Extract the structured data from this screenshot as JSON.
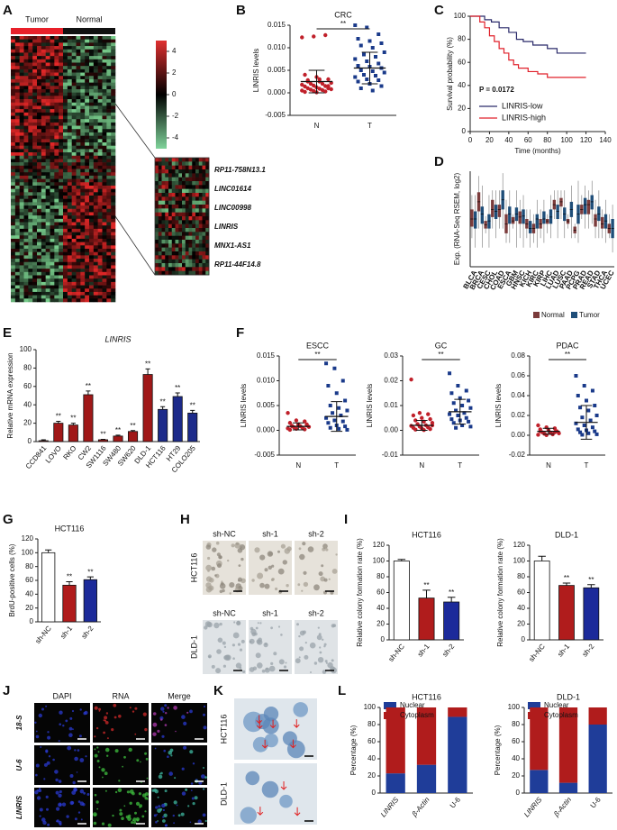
{
  "panel_letters": [
    "A",
    "B",
    "C",
    "D",
    "E",
    "F",
    "G",
    "H",
    "I",
    "J",
    "K",
    "L"
  ],
  "heatmap": {
    "group_labels": [
      "Tumor",
      "Normal"
    ],
    "group_colors": [
      "#e8202a",
      "#111111"
    ],
    "colorbar_ticks": [
      4,
      2,
      0,
      -2,
      -4
    ],
    "genes": [
      "RP11-758N13.1",
      "LINC01614",
      "LINC00998",
      "LINRIS",
      "MNX1-AS1",
      "RP11-44F14.8"
    ],
    "highlight_index": 3,
    "highlight_color": "#e02020"
  },
  "images": {
    "H": {
      "columns": [
        "sh-NC",
        "sh-1",
        "sh-2"
      ],
      "rows": [
        "HCT116",
        "DLD-1"
      ]
    },
    "J": {
      "columns": [
        "DAPI",
        "RNA",
        "Merge"
      ],
      "rows": [
        "18-S",
        "U-6",
        "LINRIS"
      ]
    },
    "K": {
      "rows": [
        "HCT116",
        "DLD-1"
      ]
    }
  },
  "chart_data": [
    {
      "type": "dot",
      "title": "CRC",
      "ylabel": "LINRIS levels",
      "categories": [
        "N",
        "T"
      ],
      "ylim": [
        -0.005,
        0.015
      ],
      "yticks": [
        -0.005,
        {
          "value": 0,
          "label": "0.000"
        },
        0.005,
        {
          "value": 0.01,
          "label": "0.010"
        },
        0.015
      ],
      "groups": [
        {
          "color": "#c0202a",
          "marker": "circle",
          "values": [
            0.0123,
            0.0125,
            0.0128,
            0.004,
            0.0035,
            0.003,
            0.0028,
            0.0025,
            0.0022,
            0.002,
            0.002,
            0.0018,
            0.0016,
            0.0015,
            0.0014,
            0.0012,
            0.001,
            0.001,
            0.0009,
            0.0008,
            0.0007,
            0.0006,
            0.0005,
            0.0004,
            0.0003,
            0.0002,
            0.0001,
            0.0015,
            0.0025,
            0.003
          ]
        },
        {
          "color": "#1a3a8a",
          "marker": "square",
          "values": [
            0.015,
            0.0145,
            0.013,
            0.012,
            0.0115,
            0.011,
            0.0105,
            0.01,
            0.009,
            0.0085,
            0.008,
            0.0075,
            0.007,
            0.0065,
            0.006,
            0.0058,
            0.0055,
            0.005,
            0.0048,
            0.0045,
            0.004,
            0.0038,
            0.0035,
            0.003,
            0.0028,
            0.0025,
            0.002,
            0.0015,
            0.001,
            0.0005
          ]
        }
      ],
      "means": [
        0.0025,
        0.0055
      ],
      "sd": [
        0.0025,
        0.0035
      ],
      "significance": "**"
    },
    {
      "type": "line",
      "ylabel": "Survival probability (%)",
      "xlabel": "Time (months)",
      "xlim": [
        0,
        140
      ],
      "xticks": [
        0,
        20,
        40,
        60,
        80,
        100,
        120,
        140
      ],
      "ylim": [
        0,
        100
      ],
      "yticks": [
        0,
        20,
        40,
        60,
        80,
        100
      ],
      "annotation": "P = 0.0172",
      "series": [
        {
          "name": "LINRIS-low",
          "color": "#2a2a6a",
          "x": [
            0,
            10,
            15,
            22,
            30,
            40,
            48,
            55,
            65,
            80,
            90,
            120
          ],
          "values": [
            100,
            100,
            97,
            95,
            90,
            86,
            80,
            78,
            75,
            72,
            68,
            68
          ]
        },
        {
          "name": "LINRIS-high",
          "color": "#e0202a",
          "x": [
            0,
            5,
            10,
            15,
            20,
            25,
            30,
            35,
            40,
            45,
            50,
            60,
            70,
            80,
            120
          ],
          "values": [
            100,
            100,
            95,
            90,
            83,
            78,
            72,
            68,
            62,
            58,
            55,
            52,
            50,
            47,
            47
          ]
        }
      ]
    },
    {
      "type": "box",
      "ylabel": "Exp. (RNA-Seq RSEM, log2)",
      "ylim": [
        -1,
        9
      ],
      "categories": [
        "BLCA",
        "BRCA",
        "CESC",
        "CHOL",
        "COAD",
        "ESCA",
        "GBM",
        "HNSC",
        "KICH",
        "KIRC",
        "KIRP",
        "LIHC",
        "LUAD",
        "LUSC",
        "PAAD",
        "PCPG",
        "PRAD",
        "READ",
        "STAD",
        "THCA",
        "UCEC"
      ],
      "series": [
        {
          "name": "Normal",
          "color": "#7b3b3b",
          "boxes": [
            [
              2,
              3.2,
              4,
              5,
              6.5
            ],
            [
              3,
              4.8,
              5.8,
              6.8,
              8.5
            ],
            [
              2.5,
              3,
              3.4,
              3.8,
              4.3
            ],
            [
              3,
              4.2,
              5,
              6,
              7
            ],
            [
              3,
              4.2,
              5,
              5.5,
              7
            ],
            [
              1.5,
              2.5,
              3.5,
              4.5,
              6
            ],
            [
              3,
              3.5,
              3.8,
              4.2,
              4.5
            ],
            [
              2,
              3.5,
              4.2,
              4.8,
              6
            ],
            [
              2,
              3,
              3.5,
              4,
              5
            ],
            [
              1.5,
              2.5,
              3,
              3.5,
              4.5
            ],
            [
              2,
              3,
              3.5,
              4,
              5
            ],
            [
              2.5,
              3.5,
              3.8,
              4,
              4.5
            ],
            [
              4,
              5,
              5.5,
              6,
              7
            ],
            [
              4,
              5.3,
              5.8,
              6.2,
              7
            ],
            [
              3,
              3.5,
              3.8,
              4,
              4.5
            ],
            [
              2,
              2.5,
              2.8,
              3.2,
              3.5
            ],
            [
              4,
              4.5,
              5,
              5.5,
              6.5
            ],
            [
              3,
              4.5,
              5.5,
              6,
              7
            ],
            [
              2,
              3.2,
              4,
              4.5,
              6
            ],
            [
              2,
              3,
              3.5,
              4.2,
              5
            ],
            [
              2,
              2.5,
              3,
              3.5,
              4.5
            ]
          ]
        },
        {
          "name": "Tumor",
          "color": "#1f4e79",
          "boxes": [
            [
              1,
              3,
              4,
              4.8,
              6.5
            ],
            [
              1,
              3.5,
              4.5,
              5.3,
              7.5
            ],
            [
              1,
              3,
              3.8,
              4.5,
              6.5
            ],
            [
              2,
              4,
              4.8,
              5.5,
              7
            ],
            [
              3,
              5,
              6,
              7,
              8.8
            ],
            [
              1.5,
              3.5,
              4.5,
              5.3,
              7
            ],
            [
              1,
              3.8,
              4.5,
              5.2,
              7
            ],
            [
              1,
              3.5,
              4.3,
              5,
              6.5
            ],
            [
              1,
              2.5,
              3,
              3.8,
              5
            ],
            [
              1,
              3,
              4,
              4.5,
              6
            ],
            [
              1.5,
              3.5,
              4,
              4.8,
              6
            ],
            [
              2,
              3.5,
              4.2,
              5,
              6.5
            ],
            [
              2,
              4,
              4.8,
              5.5,
              7
            ],
            [
              2,
              3.8,
              4.5,
              5.2,
              7
            ],
            [
              2,
              4.2,
              5,
              5.8,
              7.5
            ],
            [
              1.5,
              3.5,
              4.5,
              5.5,
              8
            ],
            [
              3,
              4.5,
              5.5,
              6.2,
              7.5
            ],
            [
              3.5,
              5,
              5.8,
              6.5,
              8
            ],
            [
              2,
              3.8,
              4.5,
              5.3,
              7
            ],
            [
              1.5,
              3,
              3.8,
              4.5,
              6
            ],
            [
              0.5,
              2,
              3,
              4,
              5.5
            ]
          ]
        }
      ]
    },
    {
      "type": "bar",
      "title": "LINRIS",
      "ylabel": "Relative mRNA expression",
      "categories": [
        "CCD841",
        "LOVO",
        "RKO",
        "CW2",
        "SW1116",
        "SW480",
        "SW620",
        "DLD-1",
        "HCT116",
        "HT29",
        "COLO205"
      ],
      "values": [
        1,
        20,
        18,
        51,
        2,
        6,
        11,
        73,
        35,
        49,
        31
      ],
      "errors": [
        1,
        2,
        2,
        4,
        0.5,
        1,
        1,
        6,
        3,
        4,
        3
      ],
      "colors": [
        "#a01818",
        "#a01818",
        "#a01818",
        "#a01818",
        "#a01818",
        "#a01818",
        "#a01818",
        "#a01818",
        "#1c2a8a",
        "#1c2a8a",
        "#1c2a8a"
      ],
      "annotations": [
        null,
        "**",
        "**",
        "**",
        "**",
        "**",
        "**",
        "**",
        "**",
        "**",
        "**"
      ],
      "ylim": [
        0,
        100
      ],
      "yticks": [
        0,
        20,
        40,
        60,
        80,
        100
      ]
    },
    {
      "type": "dot",
      "title": "ESCC",
      "ylabel": "LINRIS levels",
      "categories": [
        "N",
        "T"
      ],
      "ylim": [
        -0.005,
        0.015
      ],
      "yticks": [
        -0.005,
        {
          "value": 0,
          "label": "0.000"
        },
        0.005,
        {
          "value": 0.01,
          "label": "0.010"
        },
        0.015
      ],
      "groups": [
        {
          "color": "#c0202a",
          "marker": "circle",
          "values": [
            0.0035,
            0.002,
            0.0018,
            0.0015,
            0.0012,
            0.001,
            0.0009,
            0.0008,
            0.0007,
            0.0006,
            0.0005,
            0.0004,
            0.0003,
            0.0002,
            0.0001,
            0.001,
            0.0012,
            0.0008
          ]
        },
        {
          "color": "#1a3a8a",
          "marker": "square",
          "values": [
            0.0135,
            0.0125,
            0.01,
            0.009,
            0.0075,
            0.006,
            0.005,
            0.0045,
            0.004,
            0.0035,
            0.003,
            0.0025,
            0.002,
            0.0018,
            0.0015,
            0.001,
            0.0008,
            0.0005,
            0.0003,
            0.0001
          ]
        }
      ],
      "means": [
        0.0008,
        0.0028
      ],
      "sd": [
        0.0007,
        0.003
      ],
      "significance": "**"
    },
    {
      "type": "dot",
      "title": "GC",
      "ylabel": "LINRIS levels",
      "categories": [
        "N",
        "T"
      ],
      "ylim": [
        -0.01,
        0.03
      ],
      "yticks": [
        -0.01,
        {
          "value": 0,
          "label": "0.00"
        },
        0.01,
        0.02,
        0.03
      ],
      "groups": [
        {
          "color": "#c0202a",
          "marker": "circle",
          "values": [
            0.0205,
            0.007,
            0.0065,
            0.006,
            0.005,
            0.0045,
            0.004,
            0.0035,
            0.003,
            0.0025,
            0.002,
            0.0018,
            0.0015,
            0.0012,
            0.001,
            0.0008,
            0.0005,
            0.0003,
            0.0001,
            0.002
          ]
        },
        {
          "color": "#1a3a8a",
          "marker": "square",
          "values": [
            0.023,
            0.018,
            0.016,
            0.015,
            0.013,
            0.012,
            0.011,
            0.01,
            0.009,
            0.008,
            0.007,
            0.0065,
            0.006,
            0.005,
            0.0045,
            0.004,
            0.0035,
            0.003,
            0.002,
            0.0015,
            0.001
          ]
        }
      ],
      "means": [
        0.002,
        0.0075
      ],
      "sd": [
        0.002,
        0.005
      ],
      "significance": "**"
    },
    {
      "type": "dot",
      "title": "PDAC",
      "ylabel": "LINRIS levels",
      "categories": [
        "N",
        "T"
      ],
      "ylim": [
        -0.02,
        0.08
      ],
      "yticks": [
        -0.02,
        {
          "value": 0,
          "label": "0.00"
        },
        0.02,
        0.04,
        0.06,
        0.08
      ],
      "groups": [
        {
          "color": "#c0202a",
          "marker": "circle",
          "values": [
            0.01,
            0.008,
            0.007,
            0.006,
            0.005,
            0.004,
            0.003,
            0.0025,
            0.002,
            0.0015,
            0.001,
            0.0005,
            0.0002,
            0.003,
            0.004
          ]
        },
        {
          "color": "#1a3a8a",
          "marker": "square",
          "values": [
            0.06,
            0.05,
            0.045,
            0.04,
            0.035,
            0.03,
            0.028,
            0.025,
            0.02,
            0.018,
            0.015,
            0.012,
            0.01,
            0.008,
            0.006,
            0.005,
            0.004,
            0.003,
            0.002,
            0.001,
            0.0005
          ]
        }
      ],
      "means": [
        0.004,
        0.013
      ],
      "sd": [
        0.003,
        0.017
      ],
      "significance": "**"
    },
    {
      "type": "bar",
      "title": "HCT116",
      "ylabel": "BrdU-positive cells (%)",
      "categories": [
        "sh-NC",
        "sh-1",
        "sh-2"
      ],
      "values": [
        100,
        53,
        61
      ],
      "errors": [
        4,
        5,
        4
      ],
      "colors": [
        "#ffffff",
        "#b01c1c",
        "#1c2a9a"
      ],
      "annotations": [
        null,
        "**",
        "**"
      ],
      "ylim": [
        0,
        120
      ],
      "yticks": [
        0,
        20,
        40,
        60,
        80,
        100,
        120
      ]
    },
    {
      "type": "bar",
      "title": "HCT116",
      "ylabel": "Relative colony formation rate (%)",
      "categories": [
        "sh-NC",
        "sh-1",
        "sh-2"
      ],
      "values": [
        100,
        53,
        48
      ],
      "errors": [
        2,
        10,
        6
      ],
      "colors": [
        "#ffffff",
        "#b01c1c",
        "#1c2a9a"
      ],
      "annotations": [
        null,
        "**",
        "**"
      ],
      "ylim": [
        0,
        120
      ],
      "yticks": [
        0,
        20,
        40,
        60,
        80,
        100,
        120
      ]
    },
    {
      "type": "bar",
      "title": "DLD-1",
      "ylabel": "Relative colony formation rate (%)",
      "categories": [
        "sh-NC",
        "sh-1",
        "sh-2"
      ],
      "values": [
        100,
        69,
        66
      ],
      "errors": [
        6,
        3,
        4
      ],
      "colors": [
        "#ffffff",
        "#b01c1c",
        "#1c2a9a"
      ],
      "annotations": [
        null,
        "**",
        "**"
      ],
      "ylim": [
        0,
        120
      ],
      "yticks": [
        0,
        20,
        40,
        60,
        80,
        100,
        120
      ]
    },
    {
      "type": "stacked",
      "title": "HCT116",
      "ylabel": "Percentage (%)",
      "categories": [
        "LINRIS",
        "β-Actin",
        "U-6"
      ],
      "series": [
        {
          "name": "Nuclear",
          "color": "#1f3d99",
          "values": [
            23,
            33,
            89
          ]
        },
        {
          "name": "Cytoplasm",
          "color": "#b01c1c",
          "values": [
            77,
            67,
            11
          ]
        }
      ],
      "ylim": [
        0,
        100
      ],
      "yticks": [
        0,
        20,
        40,
        60,
        80,
        100
      ]
    },
    {
      "type": "stacked",
      "title": "DLD-1",
      "ylabel": "Percentage (%)",
      "categories": [
        "LINRIS",
        "β-Actin",
        "U-6"
      ],
      "series": [
        {
          "name": "Nuclear",
          "color": "#1f3d99",
          "values": [
            27,
            12,
            80
          ]
        },
        {
          "name": "Cytoplasm",
          "color": "#b01c1c",
          "values": [
            73,
            88,
            20
          ]
        }
      ],
      "ylim": [
        0,
        100
      ],
      "yticks": [
        0,
        20,
        40,
        60,
        80,
        100
      ]
    }
  ]
}
